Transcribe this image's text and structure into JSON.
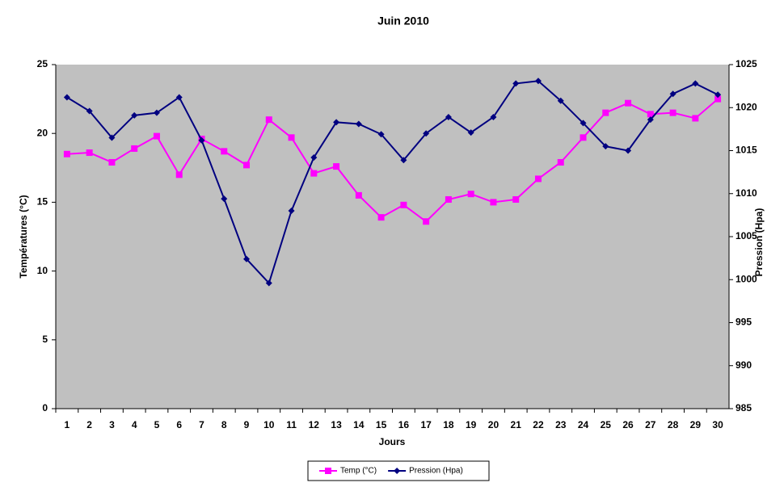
{
  "chart_data": {
    "type": "line",
    "title": "Juin 2010",
    "x_label": "Jours",
    "y_label": "Températures  (°C)",
    "y2_label": "Pression (Hpa)",
    "categories": [
      "1",
      "2",
      "3",
      "4",
      "5",
      "6",
      "7",
      "8",
      "9",
      "10",
      "11",
      "12",
      "13",
      "14",
      "15",
      "16",
      "17",
      "18",
      "19",
      "20",
      "21",
      "22",
      "23",
      "24",
      "25",
      "26",
      "27",
      "28",
      "29",
      "30"
    ],
    "ylim": [
      0,
      25
    ],
    "yticks": [
      0,
      5,
      10,
      15,
      20,
      25
    ],
    "y2lim": [
      985,
      1025
    ],
    "y2ticks": [
      985,
      990,
      995,
      1000,
      1005,
      1010,
      1015,
      1020,
      1025
    ],
    "legend": "bottom",
    "series": [
      {
        "name": "Temp (°C)",
        "color": "#ff00ff",
        "marker": "square",
        "values": [
          18.5,
          18.6,
          17.9,
          18.9,
          19.8,
          17.0,
          19.6,
          18.7,
          17.7,
          21.0,
          19.7,
          17.1,
          17.6,
          15.5,
          13.9,
          14.8,
          13.6,
          15.2,
          15.6,
          15.0,
          15.2,
          16.7,
          17.9,
          19.7,
          21.5,
          22.2,
          21.4,
          21.5,
          21.1,
          22.5
        ]
      },
      {
        "name": "Pression (Hpa)",
        "color": "#000080",
        "marker": "diamond",
        "axis": "y2",
        "values": [
          1021.2,
          1019.6,
          1016.5,
          1019.1,
          1019.4,
          1021.2,
          1016.2,
          1009.4,
          1002.4,
          999.6,
          1008.0,
          1014.2,
          1018.3,
          1018.1,
          1016.9,
          1013.9,
          1017.0,
          1018.9,
          1017.1,
          1018.9,
          1022.8,
          1023.1,
          1020.8,
          1018.2,
          1015.5,
          1015.0,
          1018.6,
          1021.6,
          1022.8,
          1021.5
        ]
      }
    ]
  }
}
